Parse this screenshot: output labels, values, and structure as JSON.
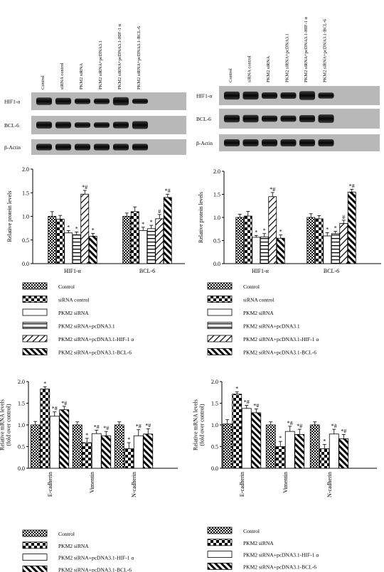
{
  "patterns": [
    "p-check",
    "p-checklg",
    "p-empty",
    "p-hstripe",
    "p-diag",
    "p-diag2"
  ],
  "blots": [
    {
      "lanes": [
        "Control",
        "siRNA control",
        "PKM2 siRNA",
        "PKM2 siRNA+pcDNA3.1",
        "PKM2 siRNA+pcDNA3.1-HIF-1 α",
        "PKM2 siRNA+pcDNA3.1-BCL-6"
      ],
      "rows": [
        "HIF1-α",
        "BCL-6",
        "β-Actin"
      ]
    },
    {
      "lanes": [
        "Control",
        "siRNA control",
        "PKM2 siRNA",
        "PKM2 siRNA+pcDNA3.1",
        "PKM2 siRNA+pcDNA3.1-HIF-1 α",
        "PKM2 siRNA+pcDNA3.1-BCL-6"
      ],
      "rows": [
        "HIF1-α",
        "BCL-6",
        "β-Actin"
      ]
    }
  ],
  "chart_data": [
    {
      "type": "bar",
      "ylabel": "Relative protein levels",
      "ylim": [
        0,
        2.0
      ],
      "yticks": [
        "0.0",
        "0.5",
        "1.0",
        "1.5",
        "2.0"
      ],
      "categories": [
        "HIF1-α",
        "BCL-6"
      ],
      "series": [
        {
          "name": "Control",
          "values": [
            1.0,
            1.0
          ],
          "errors": [
            0.1,
            0.07
          ],
          "marks": [
            "",
            ""
          ]
        },
        {
          "name": "siRNA control",
          "values": [
            0.94,
            1.1
          ],
          "errors": [
            0.08,
            0.1
          ],
          "marks": [
            "",
            ""
          ]
        },
        {
          "name": "PKM2 siRNA",
          "values": [
            0.65,
            0.7
          ],
          "errors": [
            0.05,
            0.07
          ],
          "marks": [
            "*",
            "*"
          ]
        },
        {
          "name": "PKM2 siRNA+pcDNA3.1",
          "values": [
            0.61,
            0.74
          ],
          "errors": [
            0.06,
            0.07
          ],
          "marks": [
            "*",
            "*"
          ]
        },
        {
          "name": "PKM2 siRNA+pcDNA3.1-HIF-1 α",
          "values": [
            1.47,
            0.95
          ],
          "errors": [
            0.08,
            0.09
          ],
          "marks": [
            "*#",
            "#"
          ]
        },
        {
          "name": "PKM2 siRNA+pcDNA3.1-BCL-6",
          "values": [
            0.58,
            1.4
          ],
          "errors": [
            0.06,
            0.07
          ],
          "marks": [
            "*",
            "*#"
          ]
        }
      ]
    },
    {
      "type": "bar",
      "ylabel": "Relative protein levels",
      "ylim": [
        0,
        2.0
      ],
      "yticks": [
        "0.0",
        "0.5",
        "1.0",
        "1.5",
        "2.0"
      ],
      "categories": [
        "HIF1-α",
        "BCL-6"
      ],
      "series": [
        {
          "name": "Control",
          "values": [
            1.0,
            1.0
          ],
          "errors": [
            0.07,
            0.08
          ],
          "marks": [
            "",
            ""
          ]
        },
        {
          "name": "siRNA control",
          "values": [
            1.03,
            0.97
          ],
          "errors": [
            0.1,
            0.07
          ],
          "marks": [
            "",
            ""
          ]
        },
        {
          "name": "PKM2 siRNA",
          "values": [
            0.57,
            0.6
          ],
          "errors": [
            0.04,
            0.07
          ],
          "marks": [
            "*",
            "*"
          ]
        },
        {
          "name": "PKM2 siRNA+pcDNA3.1",
          "values": [
            0.58,
            0.65
          ],
          "errors": [
            0.07,
            0.05
          ],
          "marks": [
            "*",
            "*"
          ]
        },
        {
          "name": "PKM2 siRNA+pcDNA3.1-HIF-1 α",
          "values": [
            1.45,
            0.87
          ],
          "errors": [
            0.09,
            0.07
          ],
          "marks": [
            "*#",
            "#"
          ]
        },
        {
          "name": "PKM2 siRNA+pcDNA3.1-BCL-6",
          "values": [
            0.55,
            1.55
          ],
          "errors": [
            0.07,
            0.06
          ],
          "marks": [
            "*",
            "*#"
          ]
        }
      ]
    },
    {
      "type": "bar",
      "ylabel": [
        "Relative mRNA levels",
        "(fold over control)"
      ],
      "ylim": [
        0,
        2.0
      ],
      "yticks": [
        "0.0",
        "0.5",
        "1.0",
        "1.5",
        "2.0"
      ],
      "categories": [
        "E-cadherin",
        "Vimentin",
        "N-cadherin"
      ],
      "series": [
        {
          "name": "Control",
          "values": [
            1.0,
            1.0,
            1.0
          ],
          "errors": [
            0.08,
            0.07,
            0.07
          ],
          "marks": [
            "",
            "",
            ""
          ]
        },
        {
          "name": "PKM2 siRNA",
          "values": [
            1.83,
            0.59,
            0.45
          ],
          "errors": [
            0.05,
            0.1,
            0.14
          ],
          "marks": [
            "*",
            "*",
            "*"
          ]
        },
        {
          "name": "PKM2 siRNA+pcDNA3.1-HIF-1 α",
          "values": [
            1.2,
            0.8,
            0.75
          ],
          "errors": [
            0.1,
            0.08,
            0.14
          ],
          "marks": [
            "*#",
            "*#",
            "*#"
          ]
        },
        {
          "name": "PKM2 siRNA+pcDNA3.1-BCL-6",
          "values": [
            1.35,
            0.75,
            0.79
          ],
          "errors": [
            0.08,
            0.1,
            0.12
          ],
          "marks": [
            "*#",
            "*#",
            "*#"
          ]
        }
      ]
    },
    {
      "type": "bar",
      "ylabel": [
        "Relative mRNA levels",
        "(fold over control)"
      ],
      "ylim": [
        0,
        2.0
      ],
      "yticks": [
        "0.0",
        "0.5",
        "1.0",
        "1.5",
        "2.0"
      ],
      "categories": [
        "E-cadherin",
        "Vimentin",
        "N-cadherin"
      ],
      "series": [
        {
          "name": "Control",
          "values": [
            1.02,
            1.0,
            1.0
          ],
          "errors": [
            0.1,
            0.07,
            0.07
          ],
          "marks": [
            "",
            "",
            ""
          ]
        },
        {
          "name": "PKM2 siRNA",
          "values": [
            1.71,
            0.5,
            0.45
          ],
          "errors": [
            0.05,
            0.12,
            0.1
          ],
          "marks": [
            "*",
            "*",
            "*"
          ]
        },
        {
          "name": "PKM2 siRNA+pcDNA3.1-HIF-1 α",
          "values": [
            1.38,
            0.85,
            0.79
          ],
          "errors": [
            0.07,
            0.12,
            0.11
          ],
          "marks": [
            "*#",
            "*#",
            "*#"
          ]
        },
        {
          "name": "PKM2 siRNA+pcDNA3.1-BCL-6",
          "values": [
            1.28,
            0.78,
            0.68
          ],
          "errors": [
            0.09,
            0.12,
            0.1
          ],
          "marks": [
            "*#",
            "*#",
            "*#"
          ]
        }
      ]
    }
  ]
}
